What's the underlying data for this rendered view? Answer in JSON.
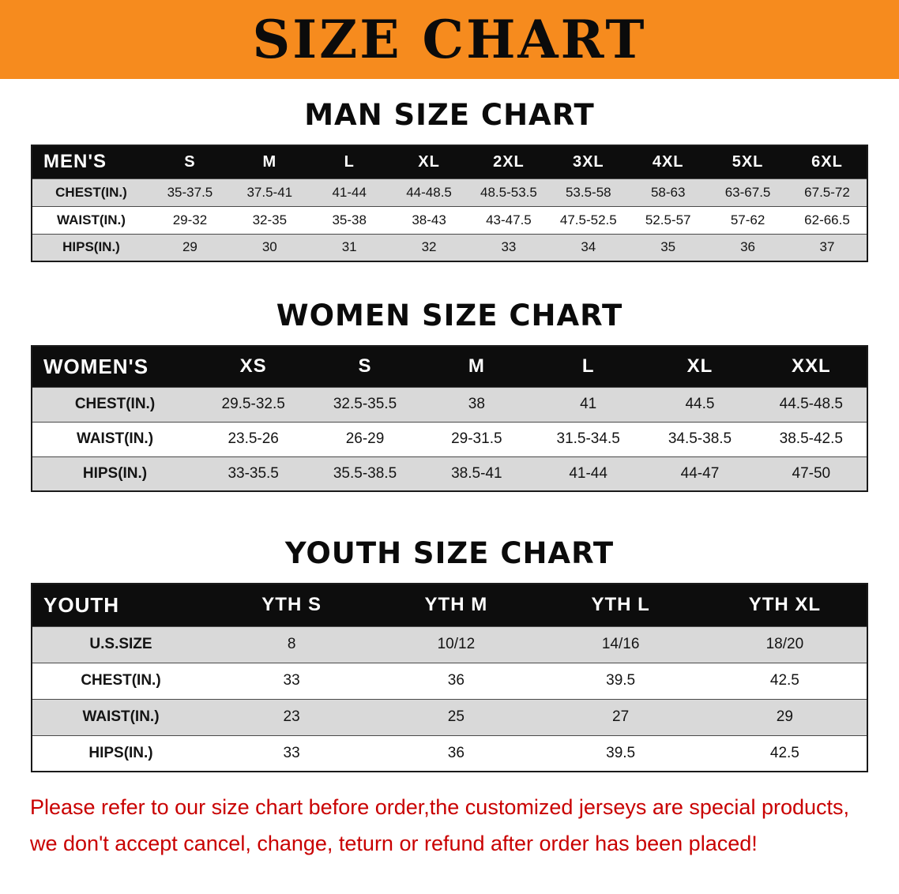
{
  "banner": {
    "title": "SIZE CHART"
  },
  "colors": {
    "banner_bg": "#F68B1E",
    "header_bg": "#0D0D0D",
    "stripe": "#D9D9D9",
    "notice_text": "#C90000"
  },
  "chart_data": [
    {
      "type": "table",
      "title": "MAN SIZE CHART",
      "header": [
        "MEN'S",
        "S",
        "M",
        "L",
        "XL",
        "2XL",
        "3XL",
        "4XL",
        "5XL",
        "6XL"
      ],
      "rows": [
        [
          "CHEST(IN.)",
          "35-37.5",
          "37.5-41",
          "41-44",
          "44-48.5",
          "48.5-53.5",
          "53.5-58",
          "58-63",
          "63-67.5",
          "67.5-72"
        ],
        [
          "WAIST(IN.)",
          "29-32",
          "32-35",
          "35-38",
          "38-43",
          "43-47.5",
          "47.5-52.5",
          "52.5-57",
          "57-62",
          "62-66.5"
        ],
        [
          "HIPS(IN.)",
          "29",
          "30",
          "31",
          "32",
          "33",
          "34",
          "35",
          "36",
          "37"
        ]
      ]
    },
    {
      "type": "table",
      "title": "WOMEN SIZE CHART",
      "header": [
        "WOMEN'S",
        "XS",
        "S",
        "M",
        "L",
        "XL",
        "XXL"
      ],
      "rows": [
        [
          "CHEST(IN.)",
          "29.5-32.5",
          "32.5-35.5",
          "38",
          "41",
          "44.5",
          "44.5-48.5"
        ],
        [
          "WAIST(IN.)",
          "23.5-26",
          "26-29",
          "29-31.5",
          "31.5-34.5",
          "34.5-38.5",
          "38.5-42.5"
        ],
        [
          "HIPS(IN.)",
          "33-35.5",
          "35.5-38.5",
          "38.5-41",
          "41-44",
          "44-47",
          "47-50"
        ]
      ]
    },
    {
      "type": "table",
      "title": "YOUTH SIZE CHART",
      "header": [
        "YOUTH",
        "YTH S",
        "YTH M",
        "YTH L",
        "YTH XL"
      ],
      "rows": [
        [
          "U.S.SIZE",
          "8",
          "10/12",
          "14/16",
          "18/20"
        ],
        [
          "CHEST(IN.)",
          "33",
          "36",
          "39.5",
          "42.5"
        ],
        [
          "WAIST(IN.)",
          "23",
          "25",
          "27",
          "29"
        ],
        [
          "HIPS(IN.)",
          "33",
          "36",
          "39.5",
          "42.5"
        ]
      ]
    }
  ],
  "footer": {
    "lines": [
      "Please refer to our size chart before order,the customized jerseys are special products,",
      "we don't accept cancel, change, teturn or refund after order has been placed!"
    ]
  }
}
